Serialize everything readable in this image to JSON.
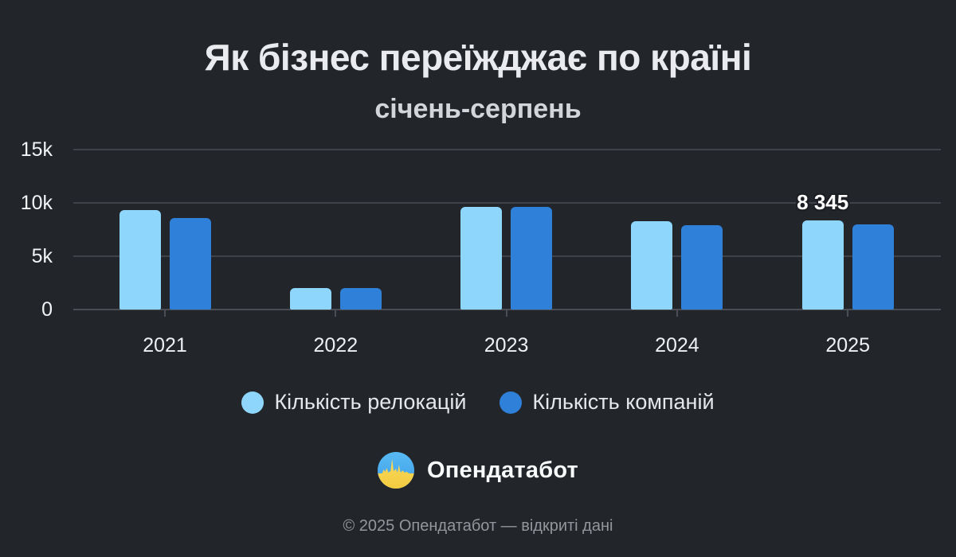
{
  "title": "Як бізнес переїжджає по країні",
  "subtitle": "січень-серпень",
  "chart_data": {
    "type": "bar",
    "categories": [
      "2021",
      "2022",
      "2023",
      "2024",
      "2025"
    ],
    "series": [
      {
        "name": "Кількість релокацій",
        "color": "#8ed6fb",
        "values": [
          9350,
          2000,
          9620,
          8250,
          8345
        ]
      },
      {
        "name": "Кількість компаній",
        "color": "#2e80d9",
        "values": [
          8550,
          1980,
          9590,
          7900,
          7950
        ]
      }
    ],
    "y_ticks": [
      {
        "label": "15k",
        "value": 15000
      },
      {
        "label": "10k",
        "value": 10000
      },
      {
        "label": "5k",
        "value": 5000
      },
      {
        "label": "0",
        "value": 0
      }
    ],
    "ylim": [
      0,
      15000
    ],
    "grid": true,
    "legend_position": "bottom",
    "data_labels": [
      {
        "series": 0,
        "category": "2025",
        "text": "8 345"
      }
    ]
  },
  "footer": {
    "brand": "Опендатабот",
    "copyright": "© 2025 Опендатабот — відкриті дані"
  },
  "colors": {
    "background": "#22262b",
    "gridline": "#3f4349",
    "axis": "#4a4e54",
    "series_light": "#8ed6fb",
    "series_dark": "#2e80d9",
    "logo_blue": "#4cb0ef",
    "logo_yellow": "#f8d24b"
  }
}
